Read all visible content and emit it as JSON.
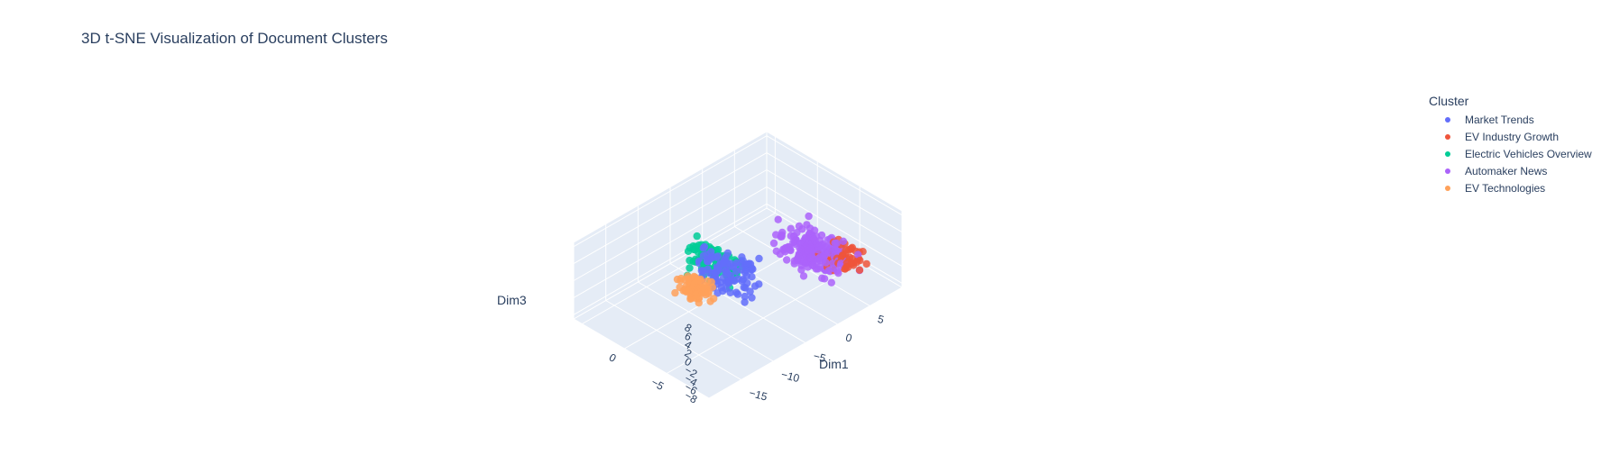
{
  "chart_data": {
    "type": "scatter",
    "title": "3D t-SNE Visualization of Document Clusters",
    "axes": {
      "x": {
        "label": "Dim1",
        "ticks": [
          -15,
          -10,
          -5,
          0,
          5
        ]
      },
      "y": {
        "label": "",
        "ticks": [
          -5,
          0
        ]
      },
      "z": {
        "label": "Dim3",
        "ticks": [
          8,
          6,
          4,
          2,
          0,
          -2,
          -4,
          -6,
          -8
        ]
      }
    },
    "legend": {
      "title": "Cluster",
      "placement": "top-right",
      "items": [
        {
          "name": "Market Trends",
          "color": "#636efa"
        },
        {
          "name": "EV Industry Growth",
          "color": "#ef553b"
        },
        {
          "name": "Electric Vehicles Overview",
          "color": "#00cc96"
        },
        {
          "name": "Automaker News",
          "color": "#ab63fa"
        },
        {
          "name": "EV Technologies",
          "color": "#ffa15a"
        }
      ]
    },
    "series": [
      {
        "name": "Market Trends",
        "color": "#636efa",
        "count": 110,
        "center_x": -8,
        "center_y": -3,
        "center_z": 2,
        "spread": 4
      },
      {
        "name": "EV Industry Growth",
        "color": "#ef553b",
        "count": 60,
        "center_x": 5,
        "center_y": -7,
        "center_z": -1,
        "spread": 2.5
      },
      {
        "name": "Electric Vehicles Overview",
        "color": "#00cc96",
        "count": 130,
        "center_x": -6,
        "center_y": 0,
        "center_z": -1,
        "spread": 3
      },
      {
        "name": "Automaker News",
        "color": "#ab63fa",
        "count": 200,
        "center_x": 3,
        "center_y": -5,
        "center_z": 0,
        "spread": 4
      },
      {
        "name": "EV Technologies",
        "color": "#ffa15a",
        "count": 95,
        "center_x": -14,
        "center_y": -4,
        "center_z": 5,
        "spread": 2
      }
    ]
  }
}
